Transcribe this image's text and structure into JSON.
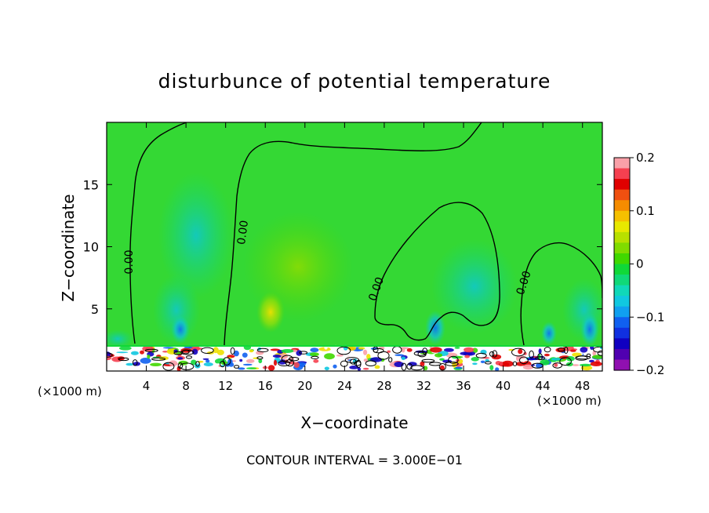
{
  "chart_data": {
    "type": "heatmap",
    "title": "disturbunce of potential temperature",
    "xlabel": "X−coordinate",
    "ylabel": "Z−coordinate",
    "x_unit_left": "(×1000 m)",
    "x_unit_right": "(×1000 m)",
    "xlim": [
      0,
      50
    ],
    "ylim": [
      0,
      20
    ],
    "x_ticks": [
      4,
      8,
      12,
      16,
      20,
      24,
      28,
      32,
      36,
      40,
      44,
      48
    ],
    "x_tick_labels": [
      "4",
      "8",
      "12",
      "16",
      "20",
      "24",
      "28",
      "32",
      "36",
      "40",
      "44",
      "48"
    ],
    "y_ticks": [
      5,
      10,
      15
    ],
    "y_tick_labels": [
      "5",
      "10",
      "15"
    ],
    "colorbar": {
      "range": [
        -0.2,
        0.2
      ],
      "ticks": [
        0.2,
        0.1,
        0,
        -0.1,
        -0.2
      ],
      "tick_labels": [
        "0.2",
        "0.1",
        "0",
        "−0.1",
        "−0.2"
      ],
      "colors": [
        "#f9a0a8",
        "#f54050",
        "#e00000",
        "#f05010",
        "#f58c00",
        "#f5c000",
        "#e8e800",
        "#b8e000",
        "#80dc00",
        "#40d800",
        "#10d838",
        "#10d878",
        "#10d8b8",
        "#10c8e0",
        "#10a0f0",
        "#1060f0",
        "#1030e0",
        "#1000c0",
        "#5000b0",
        "#9010b0"
      ]
    },
    "contour_labels": [
      "0.00",
      "0.00",
      "0.00",
      "0.00"
    ],
    "note": "CONTOUR INTERVAL = 3.000E−01",
    "background_value_color": "#34d834"
  }
}
